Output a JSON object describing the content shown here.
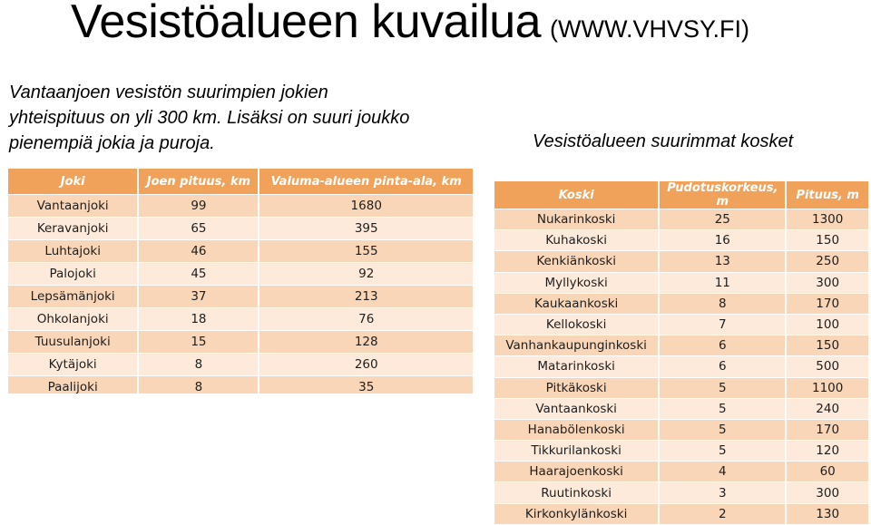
{
  "title": {
    "main": "Vesistöalueen kuvailua",
    "source": "(WWW.VHVSY.FI)"
  },
  "intro_text": "Vantaanjoen vesistön suurimpien jokien yhteispituus on yli 300 km. Lisäksi on suuri joukko pienempiä jokia ja puroja.",
  "rapids_caption": "Vesistöalueen suurimmat kosket",
  "rivers_table": {
    "headers": [
      "Joki",
      "Joen pituus, km",
      "Valuma-alueen pinta-ala, km"
    ],
    "rows": [
      [
        "Vantaanjoki",
        "99",
        "1680"
      ],
      [
        "Keravanjoki",
        "65",
        "395"
      ],
      [
        "Luhtajoki",
        "46",
        "155"
      ],
      [
        "Palojoki",
        "45",
        "92"
      ],
      [
        "Lepsämänjoki",
        "37",
        "213"
      ],
      [
        "Ohkolanjoki",
        "18",
        "76"
      ],
      [
        "Tuusulanjoki",
        "15",
        "128"
      ],
      [
        "Kytäjoki",
        "8",
        "260"
      ],
      [
        "Paalijoki",
        "8",
        "35"
      ]
    ]
  },
  "rapids_table": {
    "headers": [
      "Koski",
      "Pudotuskorkeus, m",
      "Pituus, m"
    ],
    "rows": [
      [
        "Nukarinkoski",
        "25",
        "1300"
      ],
      [
        "Kuhakoski",
        "16",
        "150"
      ],
      [
        "Kenkiänkoski",
        "13",
        "250"
      ],
      [
        "Myllykoski",
        "11",
        "300"
      ],
      [
        "Kaukaankoski",
        "8",
        "170"
      ],
      [
        "Kellokoski",
        "7",
        "100"
      ],
      [
        "Vanhankaupunginkoski",
        "6",
        "150"
      ],
      [
        "Matarinkoski",
        "6",
        "500"
      ],
      [
        "Pitkäkoski",
        "5",
        "1100"
      ],
      [
        "Vantaankoski",
        "5",
        "240"
      ],
      [
        "Hanabölenkoski",
        "5",
        "170"
      ],
      [
        "Tikkurilankoski",
        "5",
        "120"
      ],
      [
        "Haarajoenkoski",
        "4",
        "60"
      ],
      [
        "Ruutinkoski",
        "3",
        "300"
      ],
      [
        "Kirkonkylänkoski",
        "2",
        "130"
      ]
    ]
  },
  "colors": {
    "header": "#f0a25a",
    "row_dark": "#f9d6b8",
    "row_light": "#fdeadb"
  }
}
